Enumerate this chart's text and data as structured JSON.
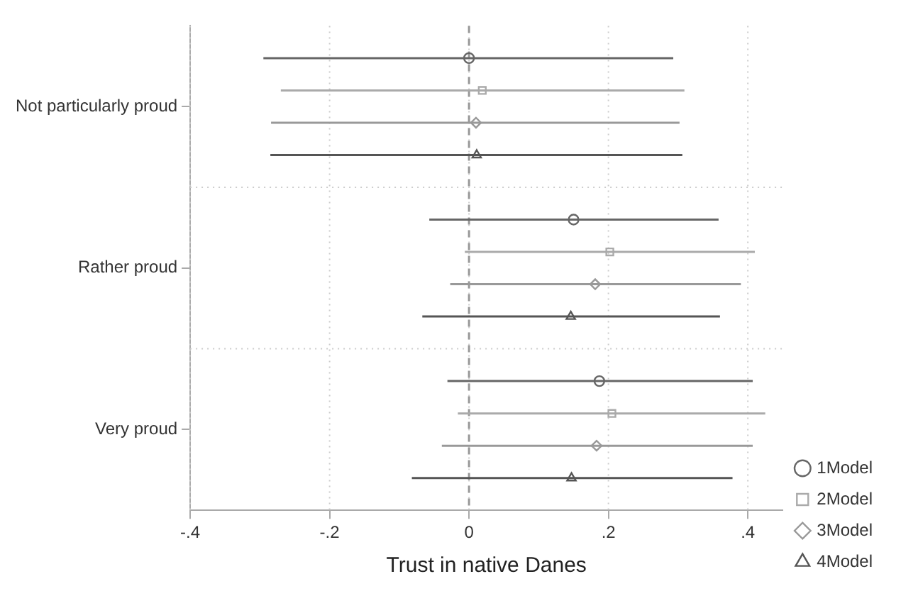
{
  "chart_data": {
    "type": "scatter",
    "orientation": "horizontal",
    "xlabel": "Trust in native Danes",
    "categories": [
      "Not particularly proud",
      "Rather proud",
      "Very proud"
    ],
    "xlim": [
      -0.4,
      0.45
    ],
    "xticks": [
      {
        "value": -0.4,
        "label": "-.4"
      },
      {
        "value": -0.2,
        "label": "-.2"
      },
      0,
      {
        "value": 0.2,
        "label": ".2"
      },
      {
        "value": 0.4,
        "label": ".4"
      }
    ],
    "grid": true,
    "legend": "bottom right",
    "ref_lines": [
      {
        "axis": "x",
        "value": 0,
        "color": "#999999",
        "line_style": "dashed"
      }
    ],
    "series": [
      {
        "name": "1Model",
        "color": "#666666",
        "marker": "circle",
        "values": [
          0.0,
          0.15,
          0.187
        ],
        "errors": [
          [
            -0.295,
            0.293
          ],
          [
            -0.057,
            0.358
          ],
          [
            -0.031,
            0.407
          ]
        ]
      },
      {
        "name": "2Model",
        "color": "#aaaaaa",
        "marker": "square",
        "values": [
          0.019,
          0.202,
          0.205
        ],
        "errors": [
          [
            -0.27,
            0.309
          ],
          [
            -0.006,
            0.41
          ],
          [
            -0.016,
            0.425
          ]
        ]
      },
      {
        "name": "3Model",
        "color": "#999999",
        "marker": "diamond",
        "values": [
          0.01,
          0.181,
          0.183
        ],
        "errors": [
          [
            -0.284,
            0.302
          ],
          [
            -0.027,
            0.39
          ],
          [
            -0.039,
            0.407
          ]
        ]
      },
      {
        "name": "4Model",
        "color": "#555555",
        "marker": "triangle",
        "values": [
          0.011,
          0.146,
          0.147
        ],
        "errors": [
          [
            -0.285,
            0.306
          ],
          [
            -0.067,
            0.36
          ],
          [
            -0.082,
            0.378
          ]
        ]
      }
    ]
  }
}
